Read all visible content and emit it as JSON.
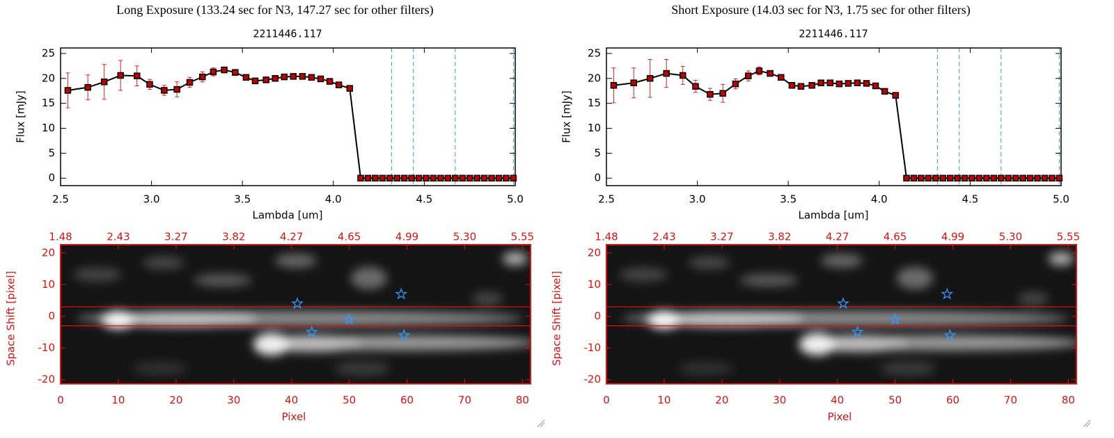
{
  "chart_data": [
    {
      "type": "spectrum",
      "title": "Long Exposure (133.24 sec for N3, 147.27 sec for other filters)",
      "subtitle": "2211446.117",
      "xlabel": "Lambda [um]",
      "ylabel": "Flux [mJy]",
      "x": [
        2.54,
        2.65,
        2.74,
        2.83,
        2.92,
        2.99,
        3.07,
        3.14,
        3.21,
        3.28,
        3.34,
        3.4,
        3.46,
        3.52,
        3.57,
        3.63,
        3.68,
        3.73,
        3.78,
        3.83,
        3.88,
        3.93,
        3.98,
        4.03,
        4.09,
        4.15,
        4.19,
        4.23,
        4.27,
        4.31,
        4.35,
        4.39,
        4.43,
        4.47,
        4.51,
        4.55,
        4.59,
        4.63,
        4.67,
        4.71,
        4.75,
        4.79,
        4.83,
        4.87,
        4.91,
        4.95,
        4.99
      ],
      "values": [
        17.6,
        18.2,
        19.3,
        20.6,
        20.5,
        18.8,
        17.6,
        17.8,
        19.2,
        20.3,
        21.3,
        21.7,
        21.2,
        20.2,
        19.5,
        19.7,
        20.0,
        20.3,
        20.4,
        20.4,
        20.2,
        19.9,
        19.4,
        18.7,
        18.0,
        0,
        0,
        0,
        0,
        0,
        0,
        0,
        0,
        0,
        0,
        0,
        0,
        0,
        0,
        0,
        0,
        0,
        0,
        0,
        0,
        0,
        0
      ],
      "errors": [
        3.5,
        2.5,
        3.5,
        3,
        2,
        1,
        1,
        1.5,
        1,
        1,
        0.8,
        0.5,
        0.4,
        0.4,
        0.4,
        0.4,
        0.4,
        0.4,
        0.4,
        0.4,
        0.4,
        0.4,
        0.4,
        0.4,
        0.4,
        null,
        null,
        null,
        null,
        null,
        null,
        null,
        null,
        null,
        null,
        null,
        null,
        null,
        null,
        null,
        null,
        null,
        null,
        null,
        null,
        null,
        null
      ],
      "color": "#000000",
      "marker_color": "#c00000",
      "error_color": "#e02020",
      "vlines": [
        4.32,
        4.44,
        4.67,
        4.99
      ],
      "vline_color": "#3399ee",
      "xlim": [
        2.5,
        5.0
      ],
      "xticks": [
        2.5,
        {
          "value": 3,
          "label": "3.0"
        },
        3.5,
        {
          "value": 4,
          "label": "4.0"
        },
        4.5,
        {
          "value": 5,
          "label": "5.0"
        }
      ],
      "ylim": [
        -1.5,
        26.1
      ],
      "yticks": [
        0,
        5,
        10,
        15,
        20,
        25
      ]
    },
    {
      "type": "image",
      "xlabel": "Pixel",
      "ylabel": "Space Shift [pixel]",
      "xlim": [
        0,
        81.4
      ],
      "xticks": [
        0,
        10,
        20,
        30,
        40,
        50,
        60,
        70,
        80
      ],
      "x2ticks": [
        {
          "value": 0,
          "label": "1.48"
        },
        {
          "value": 10,
          "label": "2.43"
        },
        {
          "value": 20,
          "label": "3.27"
        },
        {
          "value": 30,
          "label": "3.82"
        },
        {
          "value": 40,
          "label": "4.27"
        },
        {
          "value": 50,
          "label": "4.65"
        },
        {
          "value": 60,
          "label": "4.99"
        },
        {
          "value": 70,
          "label": "5.30"
        },
        {
          "value": 80,
          "label": "5.55"
        }
      ],
      "ylim": [
        -21.3,
        22.6
      ],
      "yticks": [
        -20,
        -10,
        0,
        10,
        20
      ],
      "hlines": [
        3,
        -3
      ],
      "hline_color": "#e01010",
      "markers": {
        "x": [
          41,
          50,
          43.5,
          59,
          59.5
        ],
        "y": [
          4,
          -1,
          -5,
          7,
          -6
        ],
        "color": "#3399ff"
      }
    },
    {
      "type": "spectrum",
      "title": "Short Exposure (14.03 sec for N3, 1.75 sec for other filters)",
      "subtitle": "2211446.117",
      "xlabel": "Lambda [um]",
      "ylabel": "Flux [mJy]",
      "x": [
        2.54,
        2.65,
        2.74,
        2.83,
        2.92,
        2.99,
        3.07,
        3.14,
        3.21,
        3.28,
        3.34,
        3.4,
        3.46,
        3.52,
        3.57,
        3.63,
        3.68,
        3.73,
        3.78,
        3.83,
        3.88,
        3.93,
        3.98,
        4.03,
        4.09,
        4.15,
        4.19,
        4.23,
        4.27,
        4.31,
        4.35,
        4.39,
        4.43,
        4.47,
        4.51,
        4.55,
        4.59,
        4.63,
        4.67,
        4.71,
        4.75,
        4.79,
        4.83,
        4.87,
        4.91,
        4.95,
        4.99
      ],
      "values": [
        18.6,
        19.1,
        20.0,
        21.0,
        20.6,
        18.4,
        16.8,
        17.0,
        18.9,
        20.5,
        21.5,
        21.0,
        20.2,
        18.6,
        18.4,
        18.6,
        19.1,
        19.1,
        18.9,
        19.0,
        19.1,
        19.0,
        18.5,
        17.4,
        16.6,
        0,
        0,
        0,
        0,
        0,
        0,
        0,
        0,
        0,
        0,
        0,
        0,
        0,
        0,
        0,
        0,
        0,
        0,
        0,
        0,
        0,
        0
      ],
      "errors": [
        3.5,
        3,
        3.8,
        2.8,
        1.8,
        1.2,
        1.2,
        1.8,
        1,
        1,
        0.8,
        0.5,
        0.4,
        0.4,
        0.4,
        0.4,
        0.4,
        0.4,
        0.4,
        0.4,
        0.4,
        0.4,
        0.4,
        0.4,
        0.4,
        null,
        null,
        null,
        null,
        null,
        null,
        null,
        null,
        null,
        null,
        null,
        null,
        null,
        null,
        null,
        null,
        null,
        null,
        null,
        null,
        null,
        null
      ],
      "color": "#000000",
      "marker_color": "#c00000",
      "error_color": "#e02020",
      "vlines": [
        4.32,
        4.44,
        4.67,
        4.99
      ],
      "vline_color": "#3399ee",
      "xlim": [
        2.5,
        5.0
      ],
      "xticks": [
        2.5,
        {
          "value": 3,
          "label": "3.0"
        },
        3.5,
        {
          "value": 4,
          "label": "4.0"
        },
        4.5,
        {
          "value": 5,
          "label": "5.0"
        }
      ],
      "ylim": [
        -1.5,
        26.1
      ],
      "yticks": [
        0,
        5,
        10,
        15,
        20,
        25
      ]
    },
    {
      "type": "image",
      "xlabel": "Pixel",
      "ylabel": "Space Shift [pixel]",
      "xlim": [
        0,
        81.4
      ],
      "xticks": [
        0,
        10,
        20,
        30,
        40,
        50,
        60,
        70,
        80
      ],
      "x2ticks": [
        {
          "value": 0,
          "label": "1.48"
        },
        {
          "value": 10,
          "label": "2.43"
        },
        {
          "value": 20,
          "label": "3.27"
        },
        {
          "value": 30,
          "label": "3.82"
        },
        {
          "value": 40,
          "label": "4.27"
        },
        {
          "value": 50,
          "label": "4.65"
        },
        {
          "value": 60,
          "label": "4.99"
        },
        {
          "value": 70,
          "label": "5.30"
        },
        {
          "value": 80,
          "label": "5.55"
        }
      ],
      "ylim": [
        -21.3,
        22.6
      ],
      "yticks": [
        -20,
        -10,
        0,
        10,
        20
      ],
      "hlines": [
        3,
        -3
      ],
      "hline_color": "#e01010",
      "markers": {
        "x": [
          41,
          50,
          43.5,
          59,
          59.5
        ],
        "y": [
          4,
          -1,
          -5,
          7,
          -6
        ],
        "color": "#3399ff"
      }
    }
  ]
}
